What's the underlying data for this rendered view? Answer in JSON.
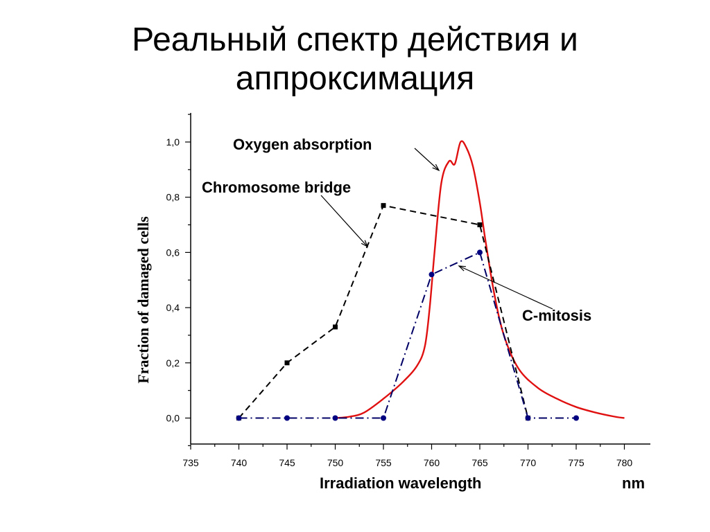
{
  "slide": {
    "title_line1": "Реальный спектр действия и",
    "title_line2": "аппроксимация"
  },
  "chart_data": {
    "type": "line",
    "xlabel": "Irradiation wavelength",
    "xunit": "nm",
    "ylabel": "Fraction of damaged cells",
    "xlim": [
      735,
      782
    ],
    "ylim": [
      -0.1,
      1.1
    ],
    "x_ticks": [
      "735",
      "740",
      "745",
      "750",
      "755",
      "760",
      "765",
      "770",
      "775",
      "780"
    ],
    "y_ticks": [
      "0,0",
      "0,2",
      "0,4",
      "0,6",
      "0,8",
      "1,0"
    ],
    "annotations": [
      "Oxygen absorption",
      "Chromosome bridge",
      "C-mitosis"
    ],
    "series": [
      {
        "name": "Chromosome bridge",
        "style": "dashed",
        "color": "#000000",
        "marker": "square",
        "x": [
          740,
          745,
          750,
          755,
          765,
          770
        ],
        "y": [
          0.0,
          0.2,
          0.33,
          0.77,
          0.7,
          0.0
        ]
      },
      {
        "name": "C-mitosis",
        "style": "dash-dot",
        "color": "#000066",
        "marker": "circle",
        "x": [
          740,
          745,
          750,
          755,
          760,
          765,
          770,
          775
        ],
        "y": [
          0.0,
          0.0,
          0.0,
          0.0,
          0.52,
          0.6,
          0.0,
          0.0
        ]
      },
      {
        "name": "Oxygen absorption",
        "style": "solid",
        "color": "#e01010",
        "marker": "none",
        "x": [
          750,
          751.5,
          753,
          755,
          757,
          758.5,
          759.3,
          759.8,
          760.3,
          761,
          761.8,
          762.4,
          763,
          763.6,
          764.3,
          765,
          765.6,
          766.5,
          767.5,
          769,
          771,
          773,
          775,
          777,
          779,
          780
        ],
        "y": [
          0.0,
          0.005,
          0.02,
          0.07,
          0.13,
          0.19,
          0.26,
          0.4,
          0.6,
          0.85,
          0.93,
          0.92,
          1.0,
          0.98,
          0.91,
          0.78,
          0.64,
          0.45,
          0.3,
          0.18,
          0.11,
          0.07,
          0.04,
          0.02,
          0.005,
          0.0
        ]
      }
    ]
  }
}
